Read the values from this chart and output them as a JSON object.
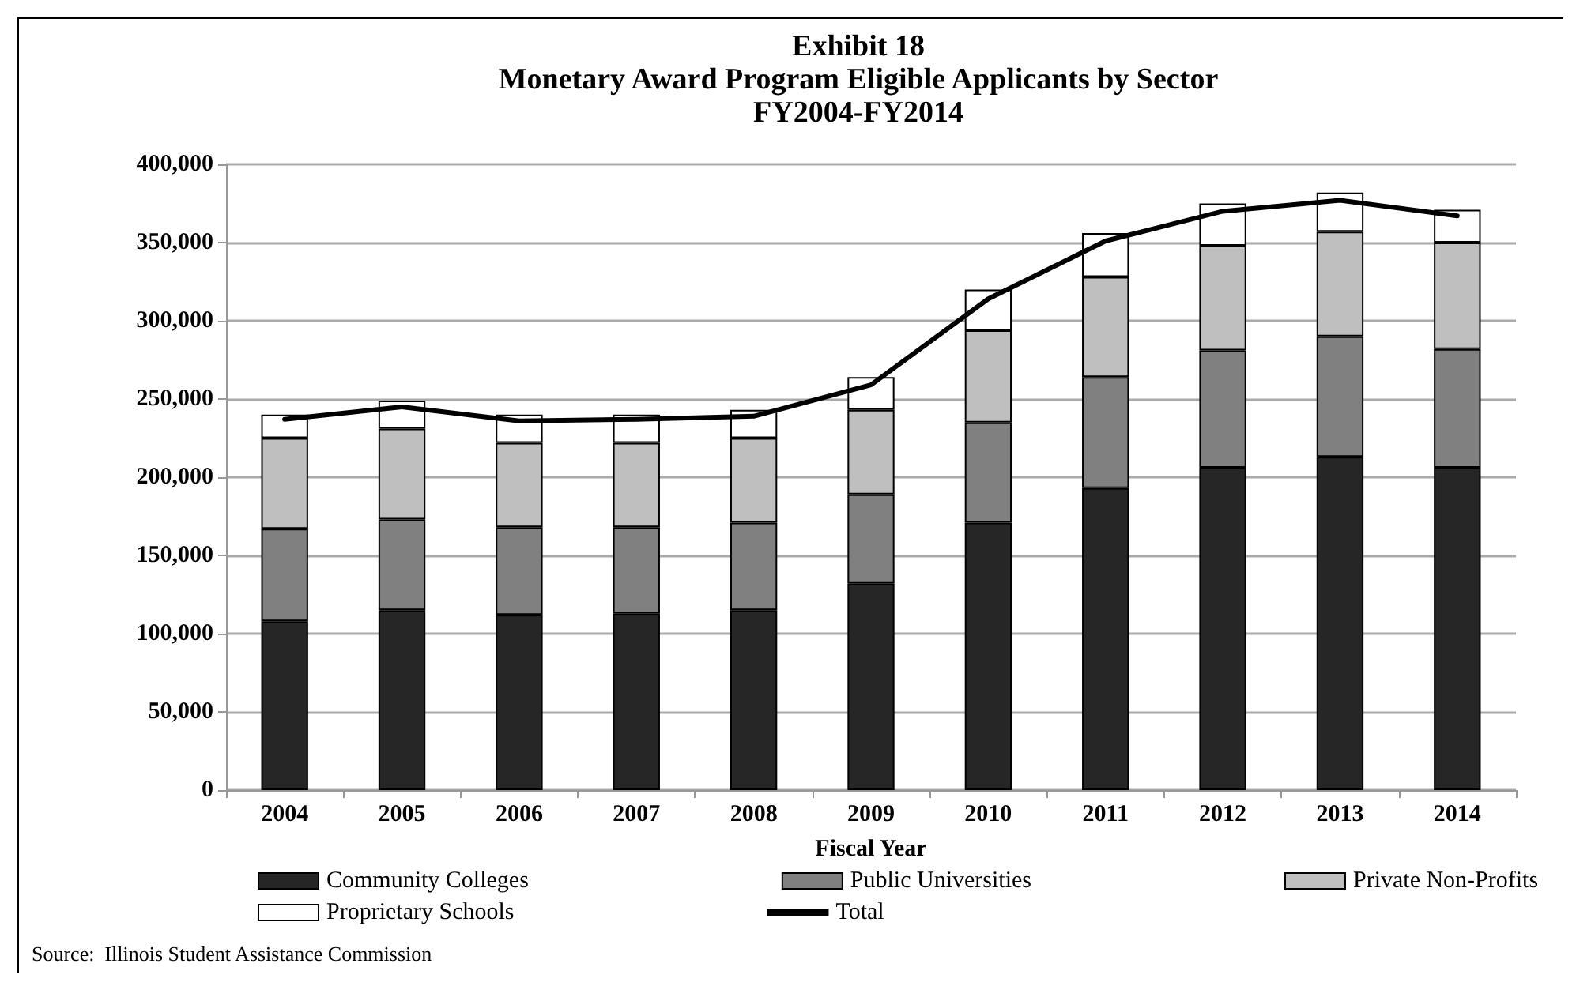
{
  "chart_data": {
    "type": "bar",
    "title": "Exhibit 18\nMonetary Award Program Eligible Applicants by Sector\nFY2004-FY2014",
    "xlabel": "Fiscal Year",
    "categories": [
      "2004",
      "2005",
      "2006",
      "2007",
      "2008",
      "2009",
      "2010",
      "2011",
      "2012",
      "2013",
      "2014"
    ],
    "stacked": true,
    "series": [
      {
        "name": "Community Colleges",
        "color": "#262626",
        "values": [
          108000,
          115000,
          112000,
          113000,
          115000,
          132000,
          171000,
          193000,
          206000,
          213000,
          206000
        ]
      },
      {
        "name": "Public Universities",
        "color": "#808080",
        "values": [
          59000,
          58000,
          56000,
          55000,
          56000,
          57000,
          64000,
          71000,
          75000,
          77000,
          76000
        ]
      },
      {
        "name": "Private Non-Profits",
        "color": "#bfbfbf",
        "values": [
          58000,
          58000,
          54000,
          54000,
          54000,
          54000,
          59000,
          64000,
          67000,
          67000,
          68000
        ]
      },
      {
        "name": "Proprietary Schools",
        "color": "#ffffff",
        "values": [
          15000,
          18000,
          18000,
          18000,
          18000,
          21000,
          26000,
          28000,
          27000,
          25000,
          21000
        ]
      },
      {
        "name": "Total",
        "type": "line",
        "color": "#000000",
        "values": [
          237000,
          245000,
          236000,
          237000,
          239000,
          259000,
          314000,
          351000,
          370000,
          377000,
          367000
        ]
      }
    ],
    "ylim": [
      0,
      400000
    ],
    "yticks": [
      {
        "value": 0,
        "label": "0"
      },
      {
        "value": 50000,
        "label": "50,000"
      },
      {
        "value": 100000,
        "label": "100,000"
      },
      {
        "value": 150000,
        "label": "150,000"
      },
      {
        "value": 200000,
        "label": "200,000"
      },
      {
        "value": 250000,
        "label": "250,000"
      },
      {
        "value": 300000,
        "label": "300,000"
      },
      {
        "value": 350000,
        "label": "350,000"
      },
      {
        "value": 400000,
        "label": "400,000"
      }
    ],
    "grid": "y",
    "legend": "bottom",
    "marker": "none",
    "line_style": "solid",
    "annotations": [
      "Source:  Illinois Student Assistance Commission"
    ]
  }
}
